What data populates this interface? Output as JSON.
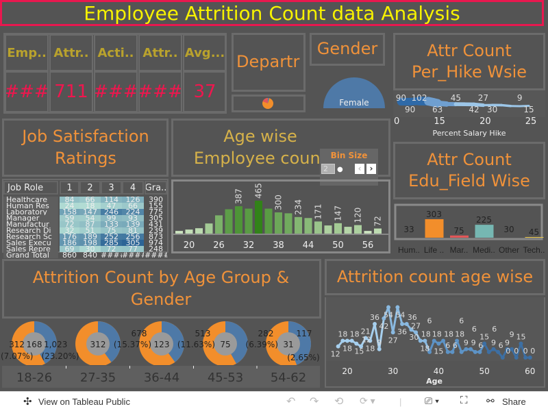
{
  "title": "Employee Attrition Count data Analysis",
  "kpi": {
    "headers": [
      "Emp..",
      "Attr..",
      "Acti..",
      "Attr..",
      "Avg..."
    ],
    "values": [
      "###",
      "711",
      "###",
      "###",
      "37"
    ]
  },
  "department": {
    "title": "Departr"
  },
  "gender": {
    "title": "Gender",
    "slice_label": "Female"
  },
  "hike": {
    "title": "Attr Count Per_Hike Wsie",
    "xlabel": "Percent Salary Hike",
    "xticks": [
      "10",
      "15",
      "20",
      "25"
    ],
    "x": [
      11,
      12,
      13,
      14,
      15,
      16,
      17,
      18,
      19,
      20,
      21,
      22,
      23,
      24,
      25
    ],
    "labels": [
      "90",
      "90",
      "102",
      "",
      "63",
      "",
      "45",
      "",
      "42",
      "27",
      "30",
      "",
      "",
      "9",
      "15"
    ],
    "values": [
      90,
      90,
      102,
      100,
      63,
      48,
      45,
      44,
      42,
      27,
      30,
      28,
      12,
      9,
      15
    ]
  },
  "job": {
    "title": "Job Satisfaction Ratings",
    "headers": [
      "Job Role",
      "1",
      "2",
      "3",
      "4",
      "Gra.."
    ],
    "rows": [
      [
        "Healthcare",
        "84",
        "66",
        "114",
        "126",
        "390"
      ],
      [
        "Human Res",
        "24",
        "18",
        "47",
        "66",
        "155"
      ],
      [
        "Laboratory",
        "158",
        "147",
        "246",
        "224",
        "775"
      ],
      [
        "Manager",
        "59",
        "54",
        "99",
        "93",
        "305"
      ],
      [
        "Manufactur",
        "72",
        "87",
        "133",
        "139",
        "431"
      ],
      [
        "Research Di",
        "32",
        "51",
        "75",
        "81",
        "239"
      ],
      [
        "Research Sc",
        "176",
        "189",
        "252",
        "256",
        "873"
      ],
      [
        "Sales Execu",
        "186",
        "198",
        "285",
        "305",
        "974"
      ],
      [
        "Sales Repre",
        "69",
        "30",
        "72",
        "77",
        "248"
      ],
      [
        "Grand Total",
        "860",
        "840",
        "####",
        "####",
        "####"
      ]
    ]
  },
  "agehist": {
    "title": "Age wise Employee count",
    "bin_label": "Bin Size",
    "bin_value": "2",
    "xticks": [
      "20",
      "26",
      "32",
      "38",
      "44",
      "50",
      "56"
    ],
    "values": [
      38,
      57,
      76,
      143,
      258,
      344,
      387,
      353,
      465,
      353,
      300,
      287,
      234,
      220,
      171,
      115,
      147,
      96,
      120,
      38,
      72
    ],
    "labels": [
      "",
      "",
      "",
      "",
      "",
      "",
      "387",
      "",
      "465",
      "",
      "300",
      "",
      "234",
      "",
      "171",
      "",
      "147",
      "",
      "120",
      "",
      "72"
    ]
  },
  "edu": {
    "title": "Attr Count Edu_Field Wise",
    "categories": [
      "Hum..",
      "Life ..",
      "Mar..",
      "Medi..",
      "Other",
      "Tech.."
    ],
    "values": [
      33,
      303,
      75,
      225,
      30,
      45
    ],
    "colors": [
      "#4e79a7",
      "#f28e2b",
      "#e15759",
      "#76b7b2",
      "#59a14f",
      "#edc948"
    ],
    "ylim": [
      44,
      303
    ]
  },
  "agegroup": {
    "title": "Attrition Count by Age Group & Gender",
    "groups": [
      {
        "label": "18-26",
        "blue": 0.42,
        "center": "168",
        "left": [
          "312",
          "(7.07%)"
        ],
        "right": [
          "1,023",
          "(23.20%)"
        ]
      },
      {
        "label": "27-35",
        "blue": 0.4,
        "center": "312",
        "left": [
          "",
          ""
        ],
        "right": [
          "",
          ""
        ]
      },
      {
        "label": "36-44",
        "blue": 0.4,
        "center": "123",
        "left": [
          "678",
          "(15.37%)"
        ],
        "right": [
          "",
          ""
        ]
      },
      {
        "label": "45-53",
        "blue": 0.42,
        "center": "75",
        "left": [
          "513",
          "(11.63%)"
        ],
        "right": [
          "",
          ""
        ]
      },
      {
        "label": "54-62",
        "blue": 0.44,
        "center": "31",
        "left": [
          "282",
          "(6.39%)"
        ],
        "right": [
          "117",
          "(2.65%)"
        ]
      }
    ],
    "colors": {
      "female": "#4e79a7",
      "male": "#f28e2b"
    }
  },
  "agewise": {
    "title": "Attrition count age wise",
    "xlabel": "Age",
    "xticks": [
      "20",
      "30",
      "40",
      "50",
      "60"
    ],
    "x": [
      18,
      19,
      20,
      21,
      22,
      23,
      24,
      25,
      26,
      27,
      28,
      29,
      30,
      31,
      32,
      33,
      34,
      35,
      36,
      37,
      38,
      39,
      40,
      41,
      42,
      43,
      44,
      45,
      46,
      47,
      48,
      49,
      50,
      51,
      52,
      53,
      54,
      55,
      56,
      57,
      58,
      59,
      60
    ],
    "values": [
      12,
      18,
      18,
      18,
      15,
      12,
      21,
      18,
      36,
      9,
      42,
      54,
      27,
      54,
      36,
      36,
      30,
      27,
      18,
      18,
      6,
      18,
      15,
      18,
      6,
      6,
      18,
      6,
      9,
      9,
      6,
      6,
      15,
      6,
      9,
      6,
      0,
      9,
      9,
      0,
      15,
      0,
      0
    ]
  },
  "footer": {
    "view": "View on Tableau Public",
    "share": "Share"
  }
}
